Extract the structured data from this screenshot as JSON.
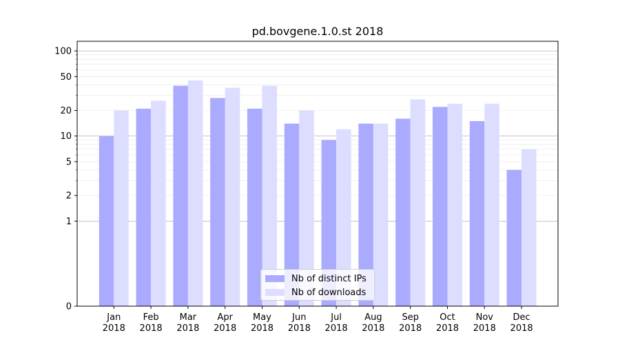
{
  "chart_data": {
    "type": "bar",
    "title": "pd.bovgene.1.0.st 2018",
    "xlabel": "",
    "ylabel": "",
    "yscale": "symlog",
    "ylim": [
      0,
      130
    ],
    "yticks": [
      0,
      1,
      2,
      5,
      10,
      20,
      50,
      100
    ],
    "grid": true,
    "legend_position": "bottom-center",
    "categories": [
      "Jan\n2018",
      "Feb\n2018",
      "Mar\n2018",
      "Apr\n2018",
      "May\n2018",
      "Jun\n2018",
      "Jul\n2018",
      "Aug\n2018",
      "Sep\n2018",
      "Oct\n2018",
      "Nov\n2018",
      "Dec\n2018"
    ],
    "series": [
      {
        "name": "Nb of distinct IPs",
        "color": "#aaaaff",
        "values": [
          10,
          21,
          39,
          28,
          21,
          14,
          9,
          14,
          16,
          22,
          15,
          4
        ]
      },
      {
        "name": "Nb of downloads",
        "color": "#ddddff",
        "values": [
          20,
          26,
          45,
          37,
          39,
          20,
          12,
          14,
          27,
          24,
          24,
          7
        ]
      }
    ]
  }
}
